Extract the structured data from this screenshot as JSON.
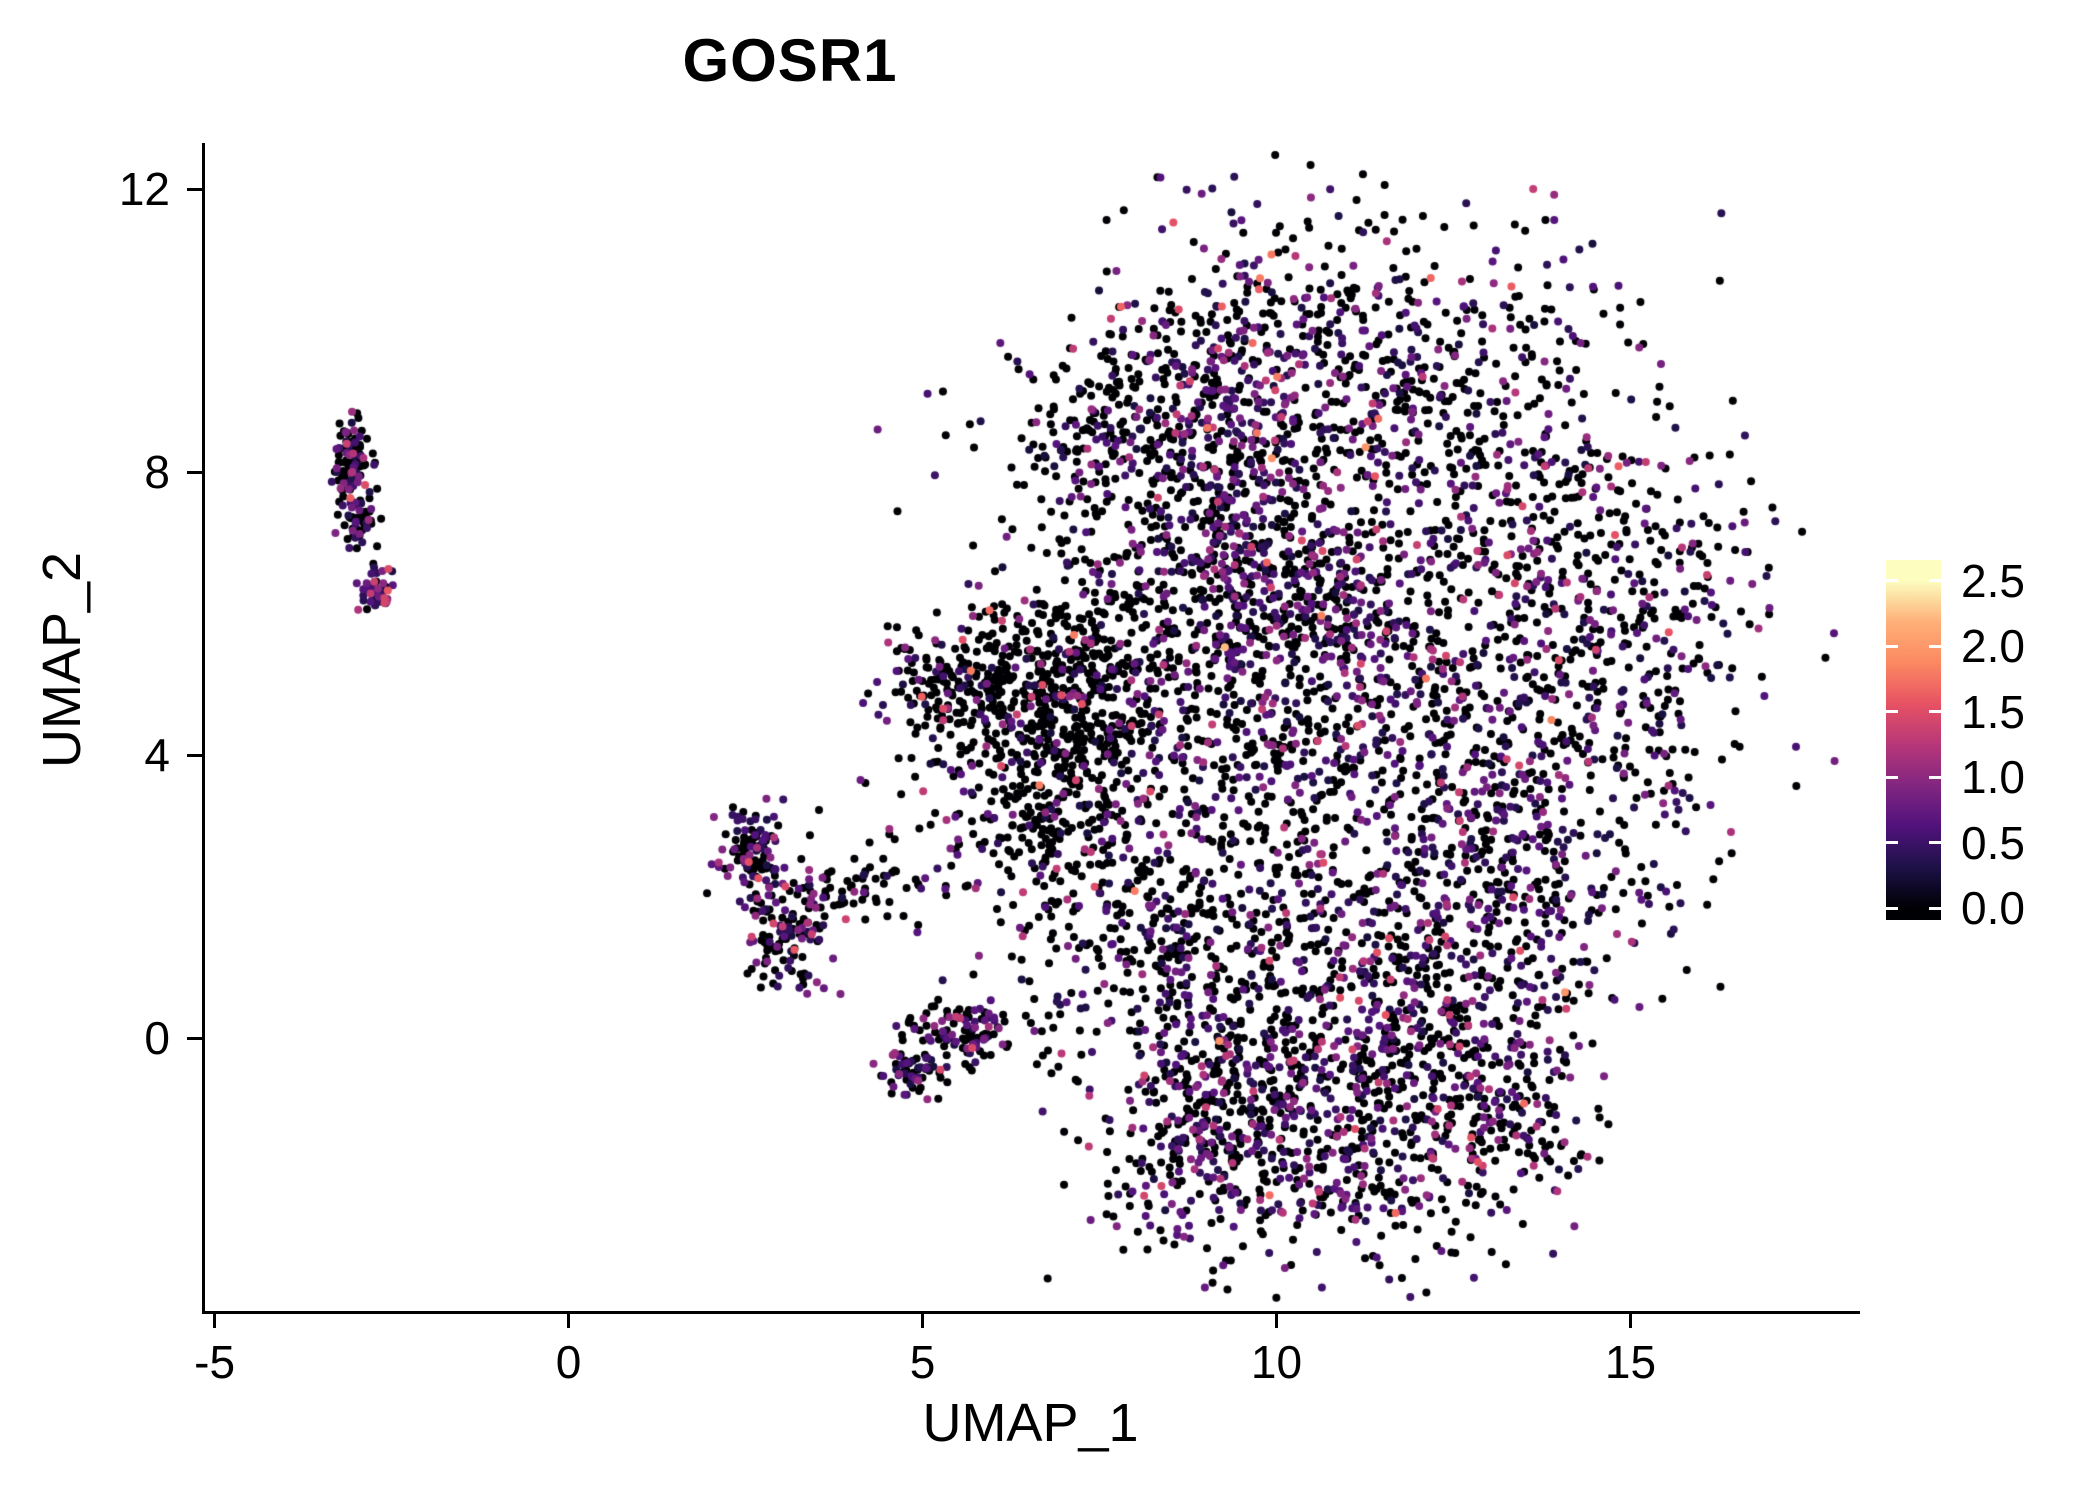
{
  "title": "GOSR1",
  "chart_data": {
    "type": "scatter",
    "title": "GOSR1",
    "xlabel": "UMAP_1",
    "ylabel": "UMAP_2",
    "xlim": [
      -5.15,
      18.2
    ],
    "ylim": [
      -3.85,
      12.65
    ],
    "xticks": [
      -5,
      0,
      5,
      10,
      15
    ],
    "xtick_labels": [
      "-5",
      "0",
      "5",
      "10",
      "15"
    ],
    "yticks": [
      0,
      4,
      8,
      12
    ],
    "ytick_labels": [
      "0",
      "4",
      "8",
      "12"
    ],
    "grid": false,
    "legend_position": "right",
    "point_radius_px": 4.0,
    "seed": 20240117,
    "colorbar": {
      "title": "",
      "vmin": 0.0,
      "vmax": 2.5,
      "ticks": [
        0.0,
        0.5,
        1.0,
        1.5,
        2.0,
        2.5
      ],
      "tick_labels": [
        "0.0",
        "0.5",
        "1.0",
        "1.5",
        "2.0",
        "2.5"
      ],
      "colormap": "magma",
      "stops": [
        "#000004",
        "#1d1147",
        "#51127c",
        "#822681",
        "#b73779",
        "#e75263",
        "#fc8961",
        "#feb078",
        "#fcfdbf"
      ]
    },
    "point_clusters": [
      {
        "cx": -3.05,
        "cy": 8.15,
        "sx": 0.13,
        "sy": 0.33,
        "n": 95,
        "p0": 0.6
      },
      {
        "cx": -2.95,
        "cy": 7.35,
        "sx": 0.12,
        "sy": 0.22,
        "n": 55,
        "p0": 0.72
      },
      {
        "cx": -2.72,
        "cy": 6.35,
        "sx": 0.1,
        "sy": 0.18,
        "n": 50,
        "p0": 0.3,
        "emax": 2.3
      },
      {
        "cx": 2.62,
        "cy": 2.65,
        "sx": 0.22,
        "sy": 0.38,
        "n": 110,
        "p0": 0.5,
        "emax": 2.4
      },
      {
        "cx": 3.05,
        "cy": 1.45,
        "sx": 0.3,
        "sy": 0.5,
        "n": 120,
        "p0": 0.62
      },
      {
        "cx": 4.1,
        "cy": 2.1,
        "sx": 0.65,
        "sy": 0.22,
        "n": 70,
        "p0": 0.75
      },
      {
        "cx": 5.6,
        "cy": 0.05,
        "sx": 0.42,
        "sy": 0.24,
        "n": 110,
        "p0": 0.55
      },
      {
        "cx": 4.85,
        "cy": -0.5,
        "sx": 0.22,
        "sy": 0.16,
        "n": 55,
        "p0": 0.5
      },
      {
        "cx": 11.0,
        "cy": 9.6,
        "sx": 2.0,
        "sy": 1.1,
        "n": 520,
        "p0": 0.6
      },
      {
        "cx": 8.7,
        "cy": 7.2,
        "sx": 1.4,
        "sy": 1.4,
        "n": 480,
        "p0": 0.62
      },
      {
        "cx": 12.4,
        "cy": 7.4,
        "sx": 1.7,
        "sy": 1.3,
        "n": 480,
        "p0": 0.58
      },
      {
        "cx": 14.9,
        "cy": 5.6,
        "sx": 1.0,
        "sy": 1.5,
        "n": 340,
        "p0": 0.58
      },
      {
        "cx": 9.6,
        "cy": 4.9,
        "sx": 1.5,
        "sy": 1.3,
        "n": 450,
        "p0": 0.6
      },
      {
        "cx": 12.3,
        "cy": 4.3,
        "sx": 1.5,
        "sy": 1.2,
        "n": 430,
        "p0": 0.55
      },
      {
        "cx": 7.05,
        "cy": 4.85,
        "sx": 0.75,
        "sy": 0.75,
        "n": 430,
        "p0": 0.87
      },
      {
        "cx": 6.6,
        "cy": 3.1,
        "sx": 0.7,
        "sy": 0.8,
        "n": 200,
        "p0": 0.8
      },
      {
        "cx": 8.3,
        "cy": 1.6,
        "sx": 1.1,
        "sy": 1.2,
        "n": 350,
        "p0": 0.72
      },
      {
        "cx": 11.0,
        "cy": 1.0,
        "sx": 1.6,
        "sy": 1.1,
        "n": 470,
        "p0": 0.52
      },
      {
        "cx": 13.4,
        "cy": 2.1,
        "sx": 1.1,
        "sy": 0.9,
        "n": 280,
        "p0": 0.55
      },
      {
        "cx": 10.1,
        "cy": -0.4,
        "sx": 1.1,
        "sy": 0.6,
        "n": 220,
        "p0": 0.55
      },
      {
        "cx": 12.6,
        "cy": 0.1,
        "sx": 0.9,
        "sy": 0.7,
        "n": 200,
        "p0": 0.55
      },
      {
        "cx": 10.7,
        "cy": -1.9,
        "sx": 1.5,
        "sy": 0.75,
        "n": 430,
        "p0": 0.58
      },
      {
        "cx": 8.85,
        "cy": -1.35,
        "sx": 0.55,
        "sy": 0.55,
        "n": 120,
        "p0": 0.65
      },
      {
        "cx": 13.15,
        "cy": -1.2,
        "sx": 0.65,
        "sy": 0.55,
        "n": 130,
        "p0": 0.6
      },
      {
        "cx": 9.35,
        "cy": 8.2,
        "sx": 0.45,
        "sy": 1.7,
        "n": 240,
        "p0": 0.35,
        "emax": 2.0
      },
      {
        "cx": 10.8,
        "cy": 5.9,
        "sx": 0.5,
        "sy": 0.5,
        "n": 110,
        "p0": 0.4
      },
      {
        "cx": 5.95,
        "cy": 5.0,
        "sx": 0.5,
        "sy": 0.55,
        "n": 150,
        "p0": 0.82
      },
      {
        "cx": 7.6,
        "cy": 8.7,
        "sx": 0.6,
        "sy": 0.55,
        "n": 110,
        "p0": 0.75
      },
      {
        "cx": 4.95,
        "cy": 5.15,
        "sx": 0.35,
        "sy": 0.4,
        "n": 60,
        "p0": 0.65
      },
      {
        "cx": 5.3,
        "cy": 3.6,
        "sx": 0.7,
        "sy": 0.6,
        "n": 30,
        "p0": 0.6
      }
    ]
  }
}
